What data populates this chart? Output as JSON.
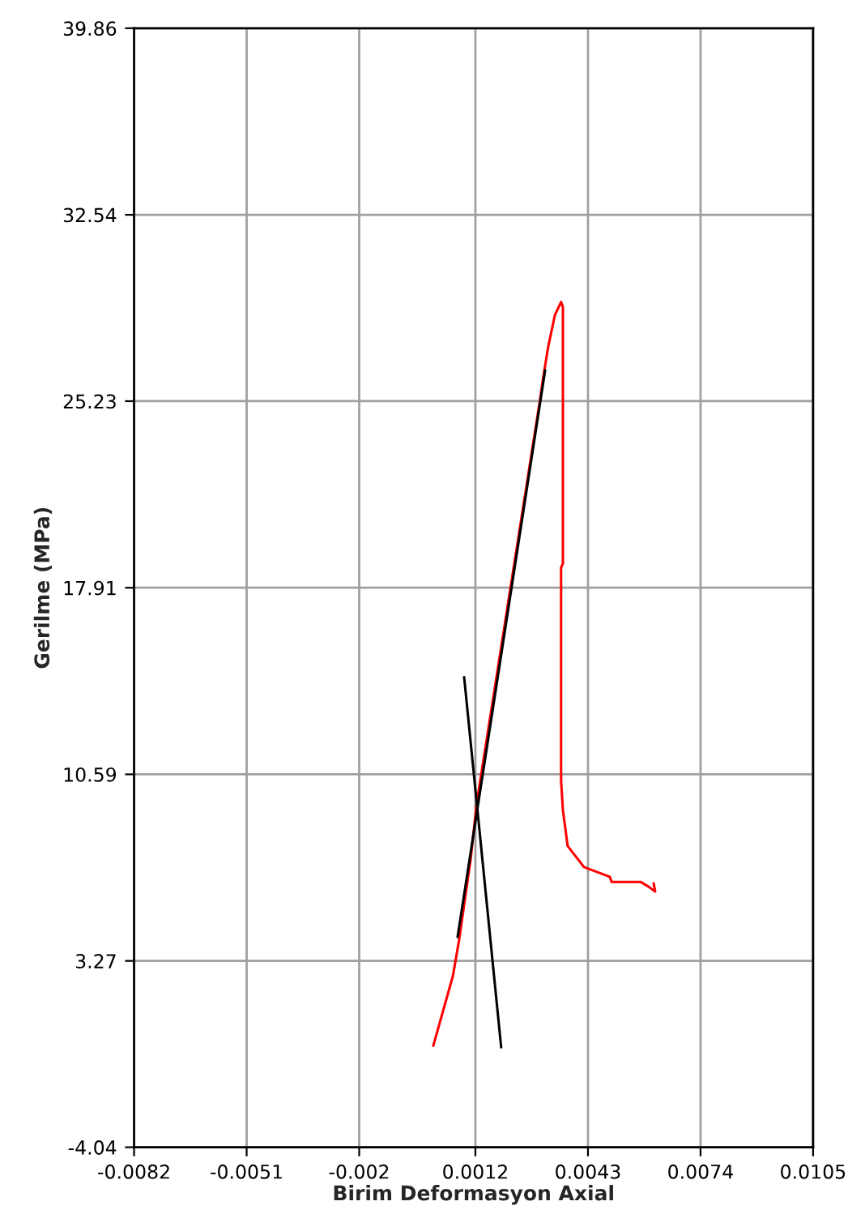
{
  "chart_data": {
    "type": "line",
    "xlabel": "Birim Deformasyon Axial",
    "ylabel": "Gerilme (MPa)",
    "xlim": [
      -0.0082,
      0.0105
    ],
    "xticks": [
      -0.0082,
      -0.0051,
      -0.002,
      0.0012,
      0.0043,
      0.0074,
      0.0105
    ],
    "ylim": [
      -4.04,
      39.86
    ],
    "yticks": [
      -4.04,
      3.27,
      10.59,
      17.91,
      25.23,
      32.54,
      39.86
    ],
    "grid": true,
    "legend": false,
    "marker": "none",
    "line_style": "solid",
    "series": [
      {
        "color": "#ff0000",
        "x": [
          4e-05,
          0.00058,
          0.00075,
          0.00107,
          0.00124,
          0.00298,
          0.00307,
          0.00321,
          0.00339,
          0.00356,
          0.00361,
          0.00361,
          0.00356,
          0.00356,
          0.00361,
          0.00374,
          0.00419,
          0.0049,
          0.00495,
          0.00575,
          0.00597,
          0.00615,
          0.00611
        ],
        "values": [
          -0.06,
          2.68,
          4.08,
          7.27,
          9.5,
          25.29,
          26.19,
          27.4,
          28.61,
          29.12,
          28.92,
          18.86,
          18.7,
          10.32,
          9.18,
          7.78,
          6.95,
          6.57,
          6.37,
          6.37,
          6.18,
          5.99,
          6.31
        ]
      },
      {
        "color": "#000000",
        "x": [
          0.00071,
          0.00312
        ],
        "values": [
          4.21,
          26.44
        ]
      },
      {
        "color": "#000000",
        "x": [
          0.00089,
          0.00191
        ],
        "values": [
          14.4,
          -0.12
        ]
      }
    ]
  }
}
